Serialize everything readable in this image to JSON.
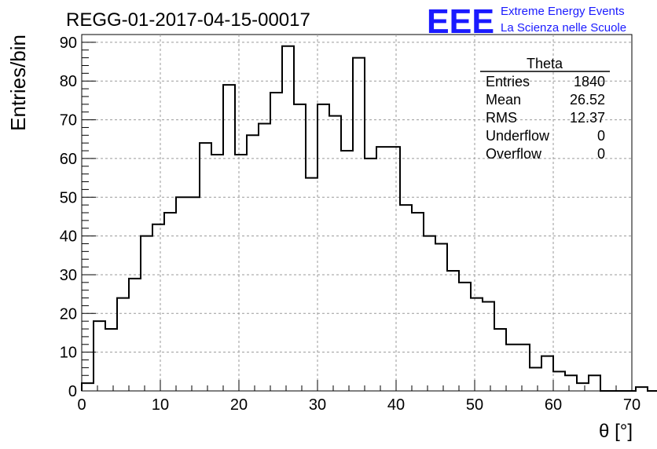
{
  "header": {
    "title": "REGG-01-2017-04-15-00017",
    "logo": {
      "mark": "EEE",
      "line1": "Extreme Energy Events",
      "line2": "La Scienza nelle Scuole",
      "color": "#1a1aff"
    }
  },
  "chart_data": {
    "type": "bar",
    "xlabel": "θ [°]",
    "ylabel": "Entries/bin",
    "xlim": [
      0,
      70
    ],
    "ylim": [
      0,
      92
    ],
    "bin_width": 1.5,
    "x_ticks": [
      0,
      10,
      20,
      30,
      40,
      50,
      60,
      70
    ],
    "y_ticks": [
      0,
      10,
      20,
      30,
      40,
      50,
      60,
      70,
      80,
      90
    ],
    "grid": true,
    "values": [
      2,
      18,
      16,
      24,
      29,
      40,
      43,
      46,
      50,
      50,
      64,
      61,
      79,
      61,
      66,
      69,
      77,
      89,
      74,
      55,
      74,
      71,
      62,
      86,
      60,
      63,
      63,
      48,
      46,
      40,
      38,
      31,
      28,
      24,
      23,
      16,
      12,
      12,
      6,
      9,
      5,
      4,
      2,
      4,
      0,
      0,
      0,
      1,
      0
    ],
    "stats_box": {
      "title": "Theta",
      "rows": [
        {
          "label": "Entries",
          "value": "1840"
        },
        {
          "label": "Mean",
          "value": "26.52"
        },
        {
          "label": "RMS",
          "value": "12.37"
        },
        {
          "label": "Underflow",
          "value": "0"
        },
        {
          "label": "Overflow",
          "value": "0"
        }
      ]
    }
  }
}
